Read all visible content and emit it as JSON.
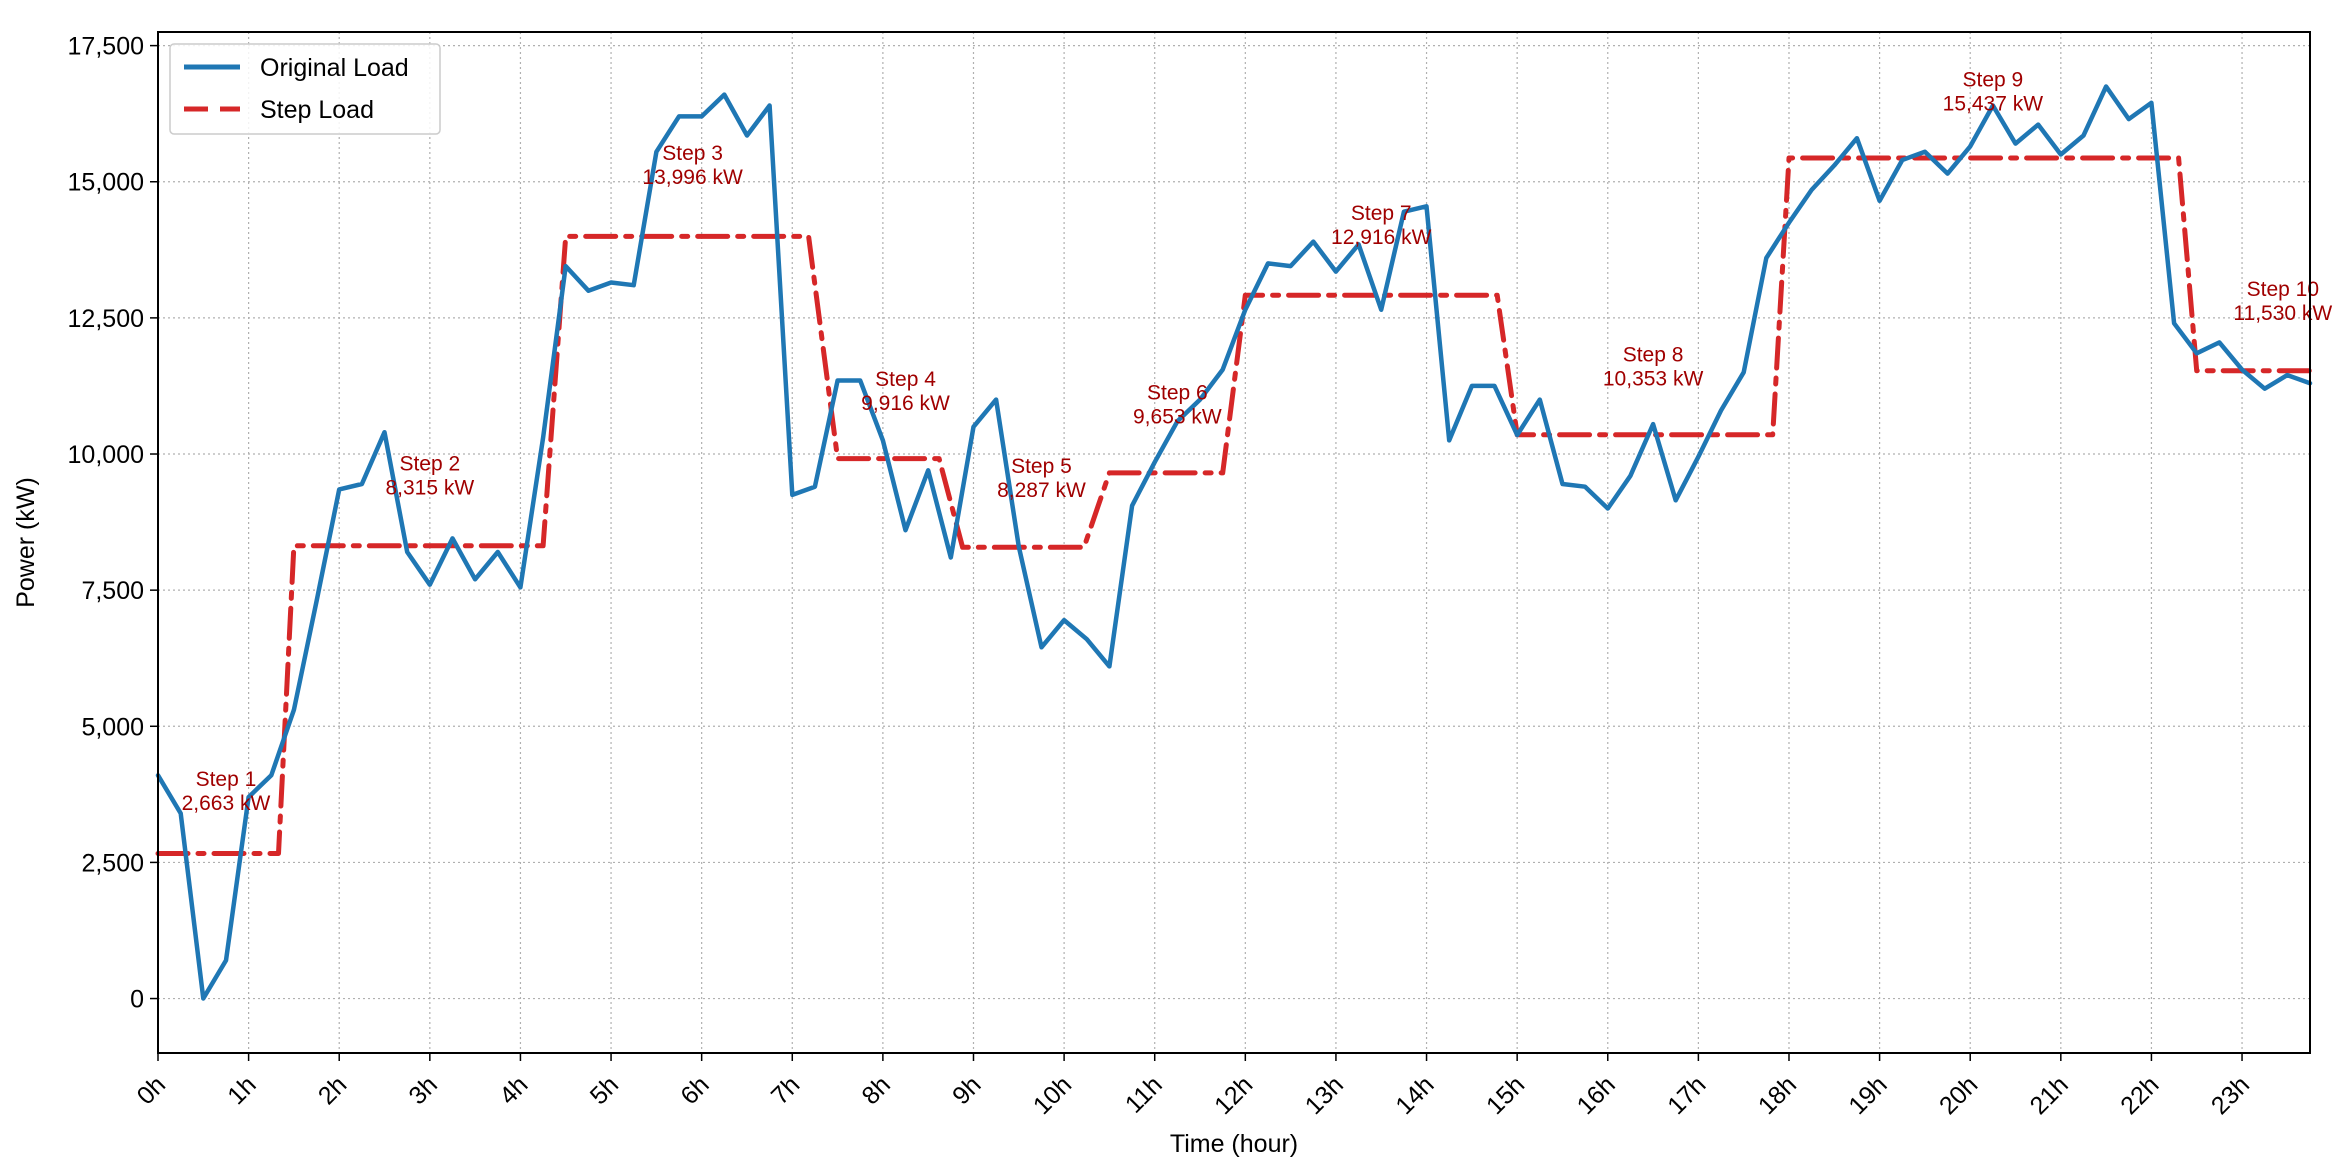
{
  "chart_data": {
    "type": "line",
    "xlabel": "Time (hour)",
    "ylabel": "Power (kW)",
    "xlim": [
      0,
      23.75
    ],
    "ylim": [
      -1000,
      17750
    ],
    "grid": true,
    "legend_position": "top-left",
    "x_ticks": [
      0,
      1,
      2,
      3,
      4,
      5,
      6,
      7,
      8,
      9,
      10,
      11,
      12,
      13,
      14,
      15,
      16,
      17,
      18,
      19,
      20,
      21,
      22,
      23
    ],
    "x_tick_labels": [
      "0h",
      "1h",
      "2h",
      "3h",
      "4h",
      "5h",
      "6h",
      "7h",
      "8h",
      "9h",
      "10h",
      "11h",
      "12h",
      "13h",
      "14h",
      "15h",
      "16h",
      "17h",
      "18h",
      "19h",
      "20h",
      "21h",
      "22h",
      "23h"
    ],
    "y_ticks": [
      0,
      2500,
      5000,
      7500,
      10000,
      12500,
      15000,
      17500
    ],
    "y_tick_labels": [
      "0",
      "2,500",
      "5,000",
      "7,500",
      "10,000",
      "12,500",
      "15,000",
      "17,500"
    ],
    "series": [
      {
        "name": "Original Load",
        "color": "#1f77b4",
        "style": "solid",
        "x": [
          0,
          0.25,
          0.5,
          0.75,
          1,
          1.25,
          1.5,
          1.75,
          2,
          2.25,
          2.5,
          2.75,
          3,
          3.25,
          3.5,
          3.75,
          4,
          4.25,
          4.5,
          4.75,
          5,
          5.25,
          5.5,
          5.75,
          6,
          6.25,
          6.5,
          6.75,
          7,
          7.25,
          7.5,
          7.75,
          8,
          8.25,
          8.5,
          8.75,
          9,
          9.25,
          9.5,
          9.75,
          10,
          10.25,
          10.5,
          10.75,
          11,
          11.25,
          11.5,
          11.75,
          12,
          12.25,
          12.5,
          12.75,
          13,
          13.25,
          13.5,
          13.75,
          14,
          14.25,
          14.5,
          14.75,
          15,
          15.25,
          15.5,
          15.75,
          16,
          16.25,
          16.5,
          16.75,
          17,
          17.25,
          17.5,
          17.75,
          18,
          18.25,
          18.5,
          18.75,
          19,
          19.25,
          19.5,
          19.75,
          20,
          20.25,
          20.5,
          20.75,
          21,
          21.25,
          21.5,
          21.75,
          22,
          22.25,
          22.5,
          22.75,
          23,
          23.25,
          23.5,
          23.75
        ],
        "values": [
          4100,
          3400,
          0,
          700,
          3700,
          4100,
          5300,
          7300,
          9350,
          9450,
          10400,
          8200,
          7600,
          8450,
          7700,
          8200,
          7550,
          10300,
          13450,
          13000,
          13150,
          13100,
          15550,
          16200,
          16200,
          16600,
          15850,
          16400,
          9250,
          9400,
          11350,
          11350,
          10250,
          8600,
          9700,
          8100,
          10500,
          11000,
          8300,
          6450,
          6950,
          6600,
          6100,
          9050,
          9850,
          10600,
          11000,
          11550,
          12650,
          13500,
          13450,
          13900,
          13350,
          13850,
          12650,
          14450,
          14550,
          10250,
          11250,
          11250,
          10350,
          11000,
          9450,
          9400,
          9000,
          9600,
          10550,
          9150,
          9950,
          10800,
          11500,
          13600,
          14250,
          14850,
          15300,
          15800,
          14650,
          15400,
          15550,
          15150,
          15650,
          16400,
          15700,
          16050,
          15500,
          15850,
          16750,
          16150,
          16450,
          12400,
          11850,
          12050,
          11550,
          11200,
          11450,
          11300
        ]
      },
      {
        "name": "Step Load",
        "color": "#d62728",
        "style": "dashdot",
        "x": [
          0,
          1.33,
          1.5,
          2.92,
          4.25,
          4.5,
          7.18,
          7.5,
          8.62,
          8.88,
          10.22,
          10.5,
          11.75,
          12,
          14.78,
          15,
          17.82,
          18,
          22.3,
          22.5,
          23.75
        ],
        "values": [
          2663,
          2663,
          8315,
          8315,
          8315,
          13996,
          13996,
          9916,
          9916,
          8287,
          8287,
          9653,
          9653,
          12916,
          12916,
          10353,
          10353,
          15437,
          15437,
          11530,
          11530
        ]
      }
    ],
    "annotations": [
      {
        "step": "Step 1",
        "value": "2,663 kW",
        "x": 0.75,
        "y": 3900
      },
      {
        "step": "Step 2",
        "value": "8,315 kW",
        "x": 3.0,
        "y": 9700
      },
      {
        "step": "Step 3",
        "value": "13,996 kW",
        "x": 5.9,
        "y": 15400
      },
      {
        "step": "Step 4",
        "value": "9,916 kW",
        "x": 8.25,
        "y": 11250
      },
      {
        "step": "Step 5",
        "value": "8,287 kW",
        "x": 9.75,
        "y": 9650
      },
      {
        "step": "Step 6",
        "value": "9,653 kW",
        "x": 11.25,
        "y": 11000
      },
      {
        "step": "Step 7",
        "value": "12,916 kW",
        "x": 13.5,
        "y": 14300
      },
      {
        "step": "Step 8",
        "value": "10,353 kW",
        "x": 16.5,
        "y": 11700
      },
      {
        "step": "Step 9",
        "value": "15,437 kW",
        "x": 20.25,
        "y": 16750
      },
      {
        "step": "Step 10",
        "value": "11,530 kW",
        "x": 23.45,
        "y": 12900
      }
    ],
    "annotation_color": "#a00000"
  }
}
